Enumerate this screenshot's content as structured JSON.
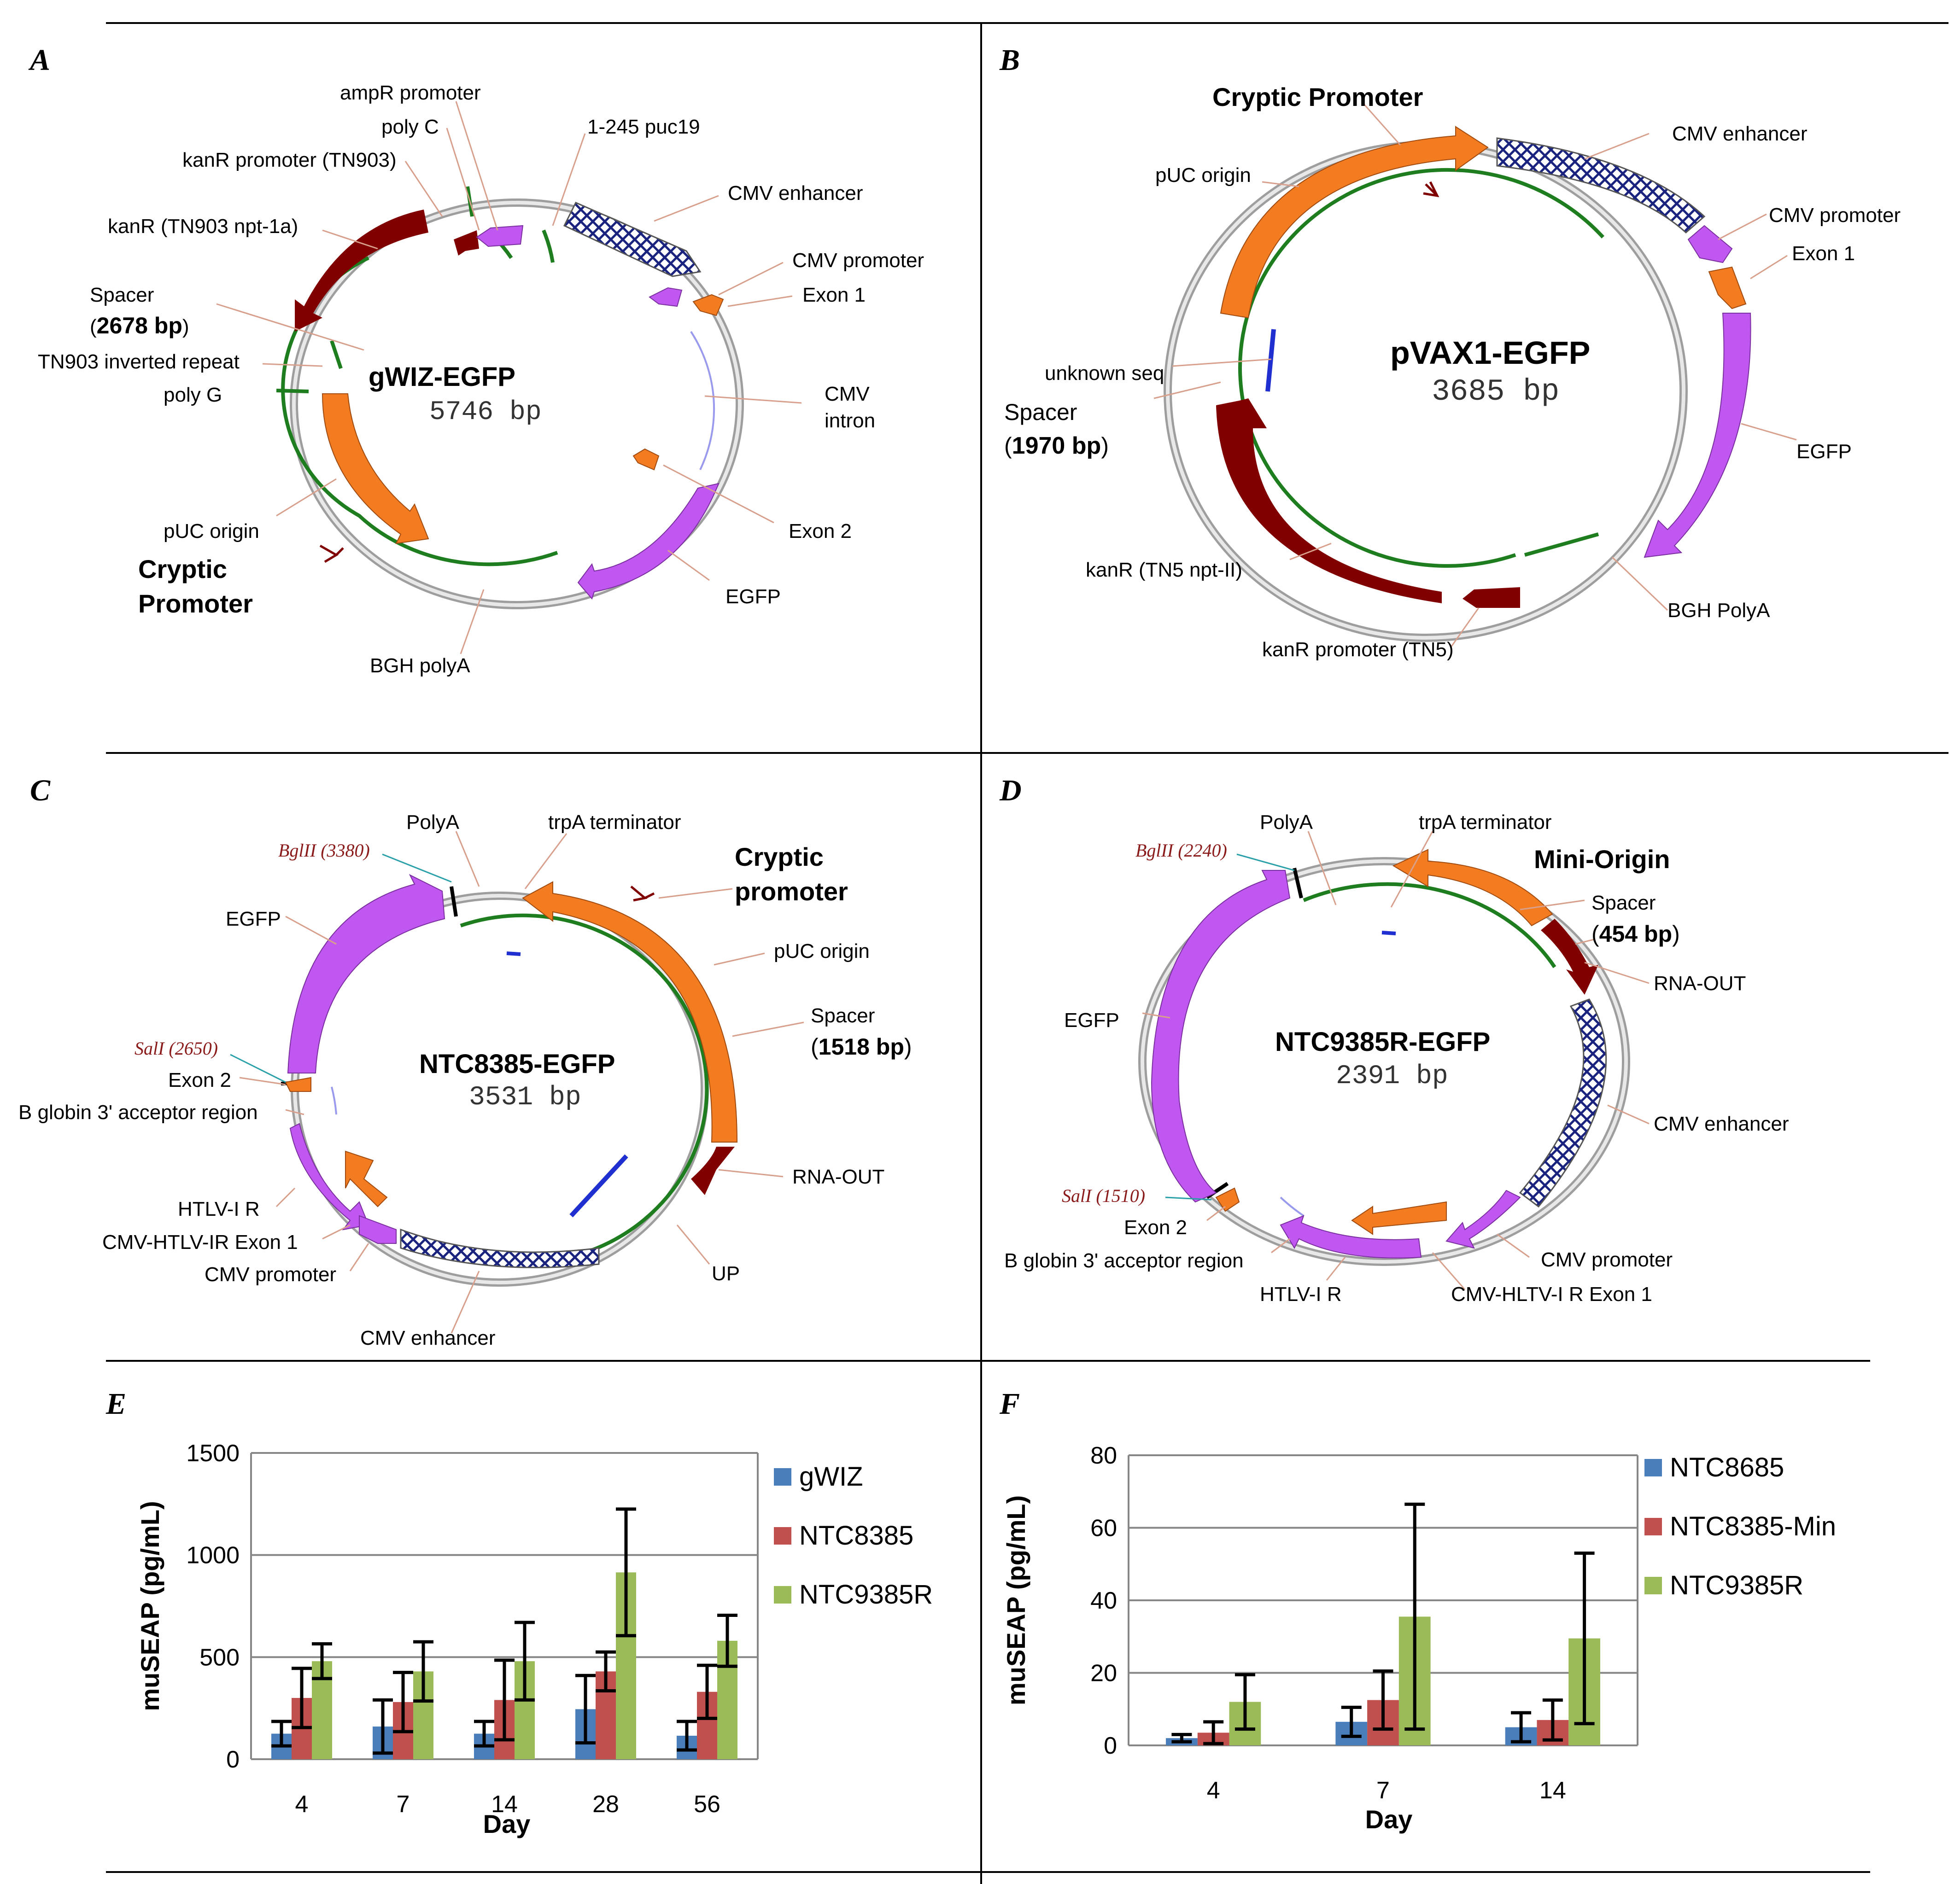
{
  "colors": {
    "orange": "#f47c20",
    "purple": "#c057f0",
    "maroon": "#800000",
    "green": "#1e7d1e",
    "blue": "#1f2fd0",
    "backbone": "#a0a0a0",
    "bar_blue": "#4a7ebb",
    "bar_red": "#c0504d",
    "bar_green": "#9bbb59"
  },
  "panels": {
    "A": {
      "letter": "A",
      "name": "gWIZ-EGFP",
      "size": "5746 bp",
      "labels": {
        "ampR_promoter": "ampR promoter",
        "poly_c": "poly C",
        "puc19": "1-245 puc19",
        "kanR_promoter": "kanR promoter (TN903)",
        "cmv_enhancer": "CMV enhancer",
        "kanR": "kanR (TN903 npt-1a)",
        "cmv_promoter": "CMV promoter",
        "exon1": "Exon 1",
        "spacer": "Spacer",
        "spacer_bp": "2678 bp",
        "tn903_ir": "TN903 inverted repeat",
        "cmv_intron_1": "CMV",
        "cmv_intron_2": "intron",
        "poly_g": "poly G",
        "exon2": "Exon 2",
        "puc_origin": "pUC origin",
        "cryptic_1": "Cryptic",
        "cryptic_2": "Promoter",
        "egfp": "EGFP",
        "bgh": "BGH polyA"
      }
    },
    "B": {
      "letter": "B",
      "name": "pVAX1-EGFP",
      "size": "3685 bp",
      "labels": {
        "cryptic": "Cryptic Promoter",
        "cmv_enhancer": "CMV enhancer",
        "puc_origin": "pUC origin",
        "cmv_promoter": "CMV promoter",
        "exon1": "Exon 1",
        "unknown": "unknown seq",
        "spacer": "Spacer",
        "spacer_bp": "1970 bp",
        "egfp": "EGFP",
        "kanR": "kanR (TN5 npt-II)",
        "bgh": "BGH PolyA",
        "kanR_promoter": "kanR promoter (TN5)"
      }
    },
    "C": {
      "letter": "C",
      "name": "NTC8385-EGFP",
      "size": "3531 bp",
      "labels": {
        "polyA": "PolyA",
        "trpA": "trpA terminator",
        "bglII": "BglII (3380)",
        "cryptic_1": "Cryptic",
        "cryptic_2": "promoter",
        "egfp": "EGFP",
        "puc_origin": "pUC origin",
        "spacer": "Spacer",
        "spacer_bp": "1518 bp",
        "sali": "SalI (2650)",
        "exon2": "Exon 2",
        "bglobin": "B globin 3' acceptor region",
        "rna_out": "RNA-OUT",
        "htlv": "HTLV-I R",
        "cmv_htlv": "CMV-HTLV-IR Exon 1",
        "cmv_promoter": "CMV promoter",
        "up": "UP",
        "cmv_enhancer": "CMV enhancer"
      }
    },
    "D": {
      "letter": "D",
      "name": "NTC9385R-EGFP",
      "size": "2391 bp",
      "labels": {
        "polyA": "PolyA",
        "trpA": "trpA terminator",
        "bglII": "BglII (2240)",
        "mini_origin": "Mini-Origin",
        "spacer": "Spacer",
        "spacer_bp": "454 bp",
        "rna_out": "RNA-OUT",
        "egfp": "EGFP",
        "cmv_enhancer": "CMV enhancer",
        "sali": "SalI (1510)",
        "exon2": "Exon 2",
        "cmv_promoter": "CMV promoter",
        "bglobin": "B globin 3' acceptor region",
        "htlv": "HTLV-I R",
        "cmv_hltv": "CMV-HLTV-I R Exon 1"
      }
    }
  },
  "chart_data": [
    {
      "panel": "E",
      "type": "bar",
      "xlabel": "Day",
      "ylabel": "muSEAP (pg/mL)",
      "ylim": [
        0,
        1500
      ],
      "yticks": [
        0,
        500,
        1000,
        1500
      ],
      "grid": true,
      "legend_position": "right",
      "categories": [
        "4",
        "7",
        "14",
        "28",
        "56"
      ],
      "series": [
        {
          "name": "gWIZ",
          "color": "#4a7ebb",
          "values": [
            125,
            160,
            125,
            245,
            115
          ],
          "errors": [
            60,
            130,
            60,
            165,
            70
          ]
        },
        {
          "name": "NTC8385",
          "color": "#c0504d",
          "values": [
            300,
            280,
            290,
            430,
            330
          ],
          "errors": [
            145,
            145,
            195,
            95,
            130
          ]
        },
        {
          "name": "NTC9385R",
          "color": "#9bbb59",
          "values": [
            480,
            430,
            480,
            915,
            580
          ],
          "errors": [
            85,
            145,
            190,
            310,
            125
          ]
        }
      ]
    },
    {
      "panel": "F",
      "type": "bar",
      "xlabel": "Day",
      "ylabel": "muSEAP (pg/mL)",
      "ylim": [
        0,
        80
      ],
      "yticks": [
        0,
        20,
        40,
        60,
        80
      ],
      "grid": true,
      "legend_position": "right",
      "categories": [
        "4",
        "7",
        "14"
      ],
      "series": [
        {
          "name": "NTC8685",
          "color": "#4a7ebb",
          "values": [
            2,
            6.5,
            5
          ],
          "errors": [
            1,
            4,
            4
          ]
        },
        {
          "name": "NTC8385-Min",
          "color": "#c0504d",
          "values": [
            3.5,
            12.5,
            7
          ],
          "errors": [
            3,
            8,
            5.5
          ]
        },
        {
          "name": "NTC9385R",
          "color": "#9bbb59",
          "values": [
            12,
            35.5,
            29.5
          ],
          "errors": [
            7.5,
            31,
            23.5
          ]
        }
      ]
    }
  ]
}
